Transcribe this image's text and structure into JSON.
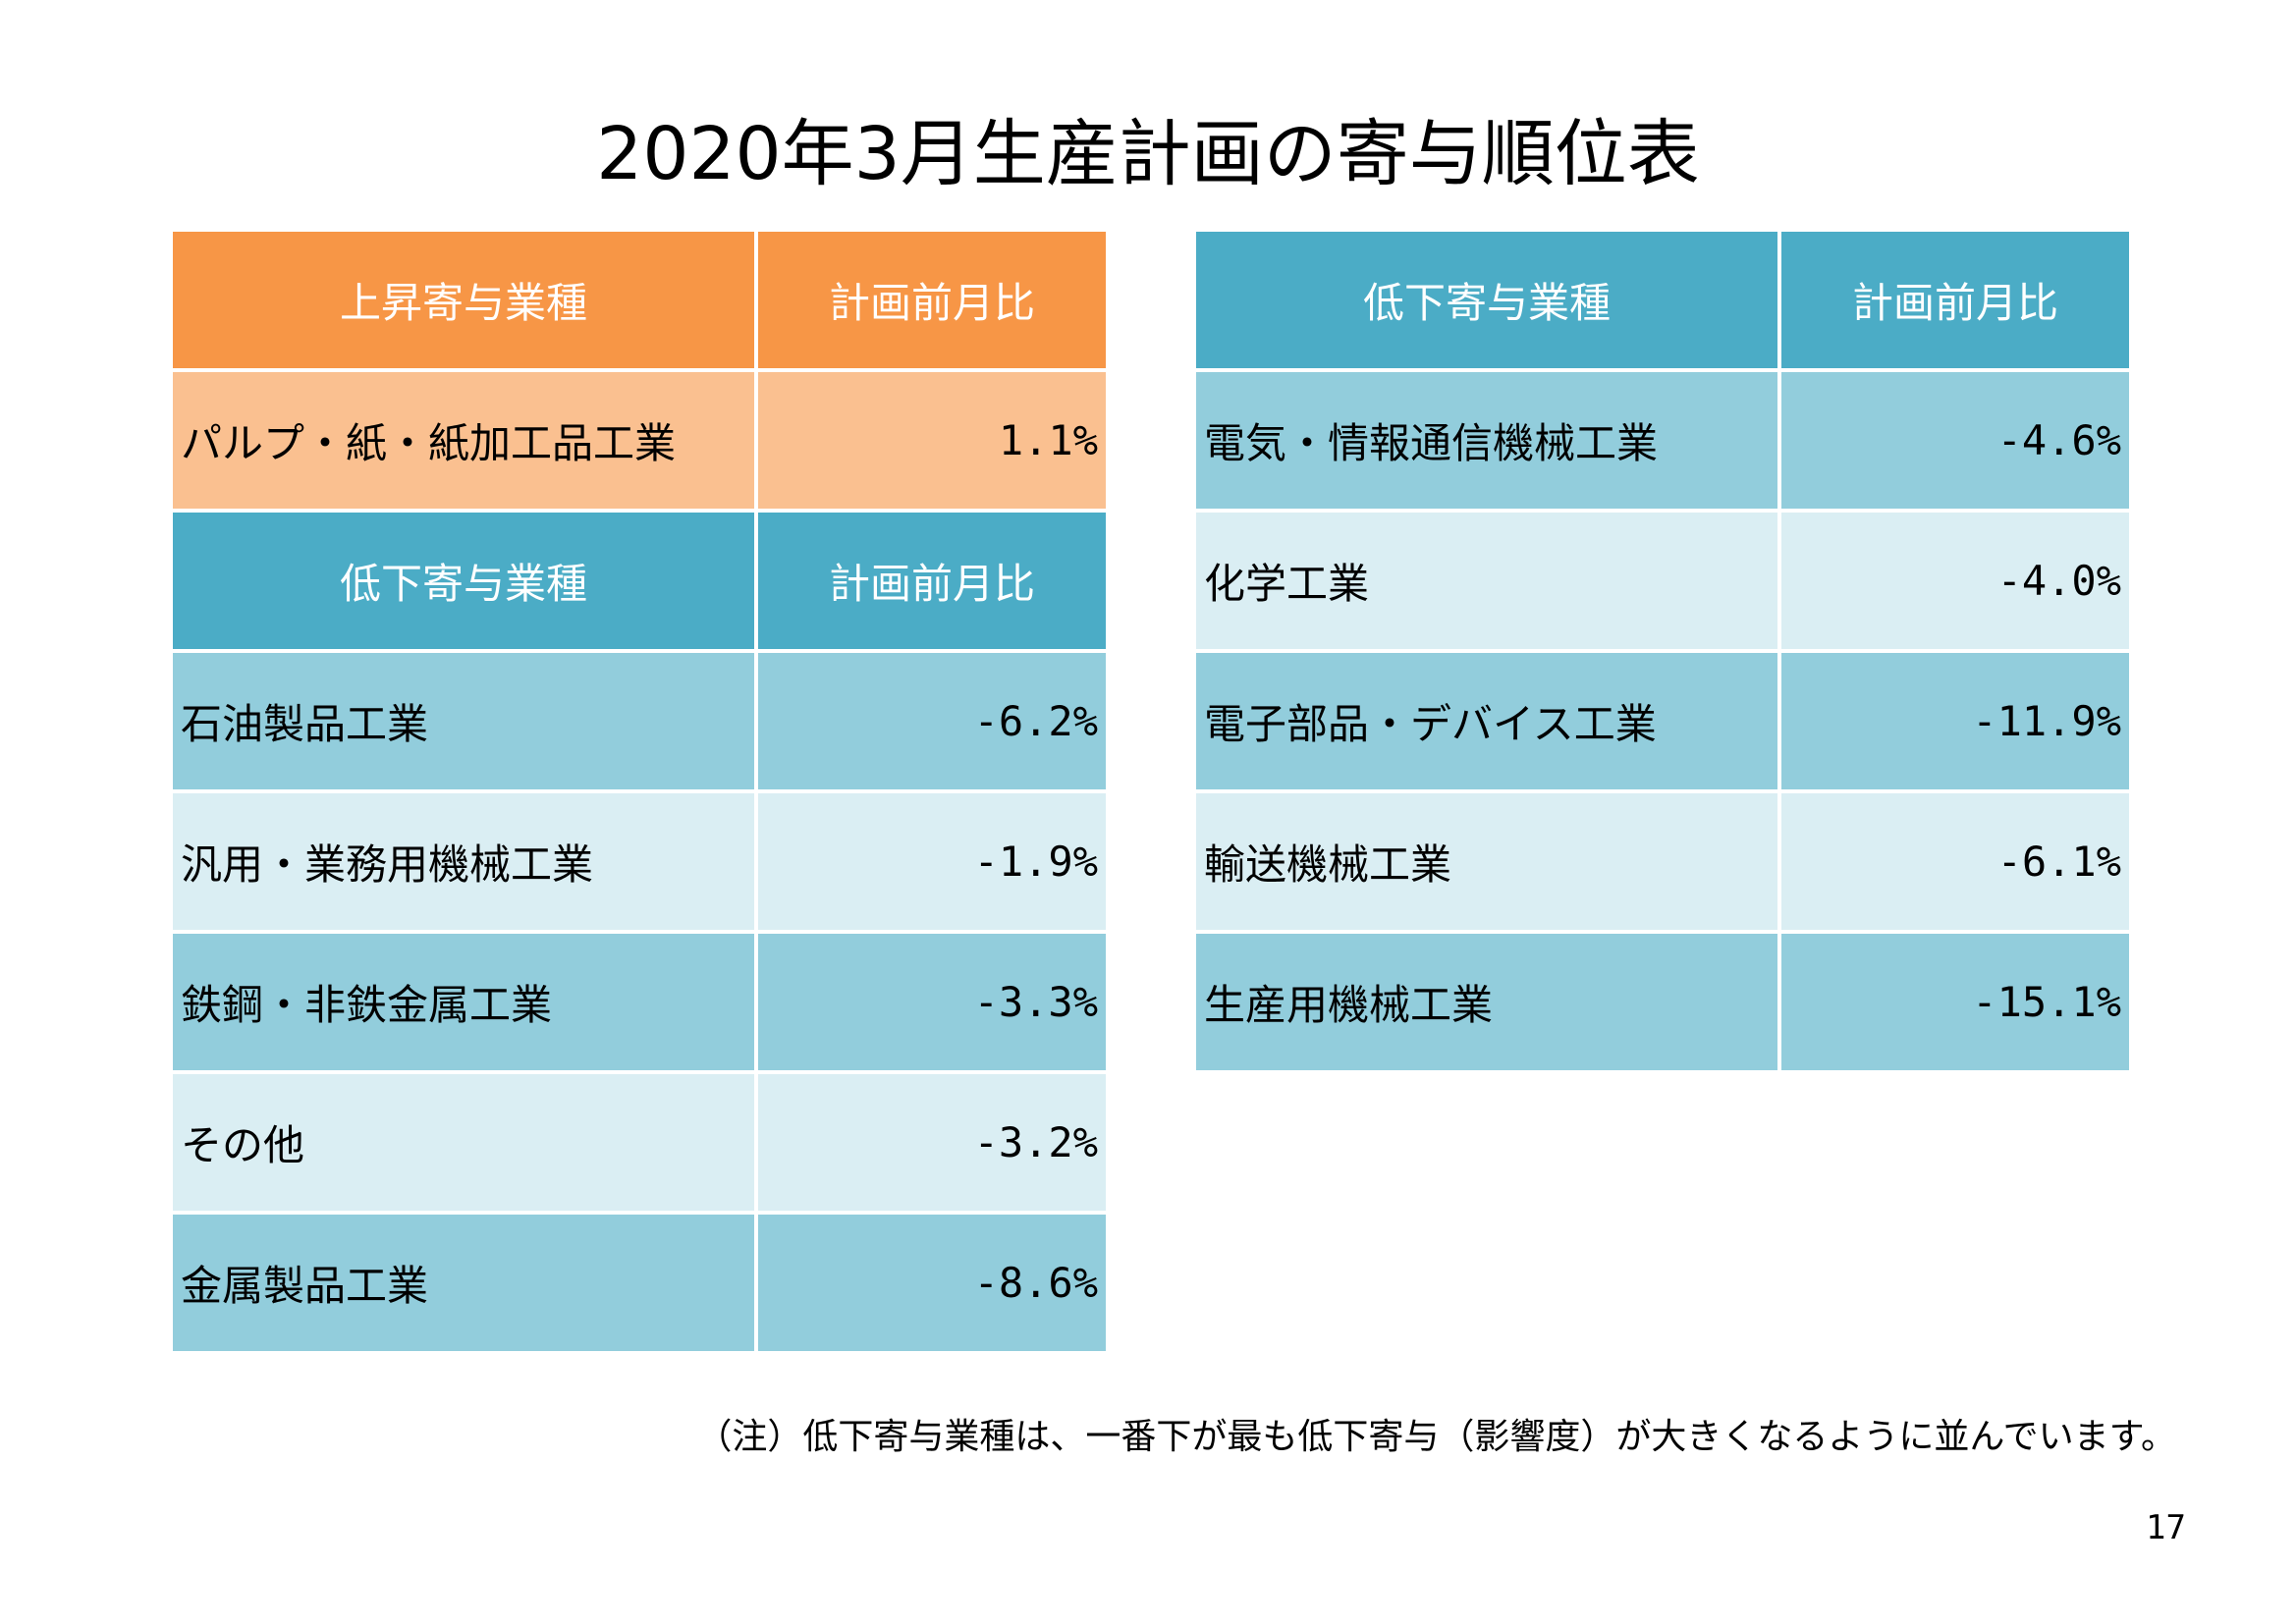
{
  "title": "2020年3月生産計画の寄与順位表",
  "left_table": {
    "rise_header": {
      "category": "上昇寄与業種",
      "value": "計画前月比"
    },
    "rise_rows": [
      {
        "category": "パルプ・紙・紙加工品工業",
        "value": "1.1%"
      }
    ],
    "fall_header": {
      "category": "低下寄与業種",
      "value": "計画前月比"
    },
    "fall_rows": [
      {
        "category": "石油製品工業",
        "value": "-6.2%"
      },
      {
        "category": "汎用・業務用機械工業",
        "value": "-1.9%"
      },
      {
        "category": "鉄鋼・非鉄金属工業",
        "value": "-3.3%"
      },
      {
        "category": "その他",
        "value": "-3.2%"
      },
      {
        "category": "金属製品工業",
        "value": "-8.6%"
      }
    ]
  },
  "right_table": {
    "header": {
      "category": "低下寄与業種",
      "value": "計画前月比"
    },
    "rows": [
      {
        "category": "電気・情報通信機械工業",
        "value": "-4.6%"
      },
      {
        "category": "化学工業",
        "value": "-4.0%"
      },
      {
        "category": "電子部品・デバイス工業",
        "value": "-11.9%"
      },
      {
        "category": "輸送機械工業",
        "value": "-6.1%"
      },
      {
        "category": "生産用機械工業",
        "value": "-15.1%"
      }
    ]
  },
  "note": "（注）低下寄与業種は、一番下が最も低下寄与（影響度）が大きくなるように並んでいます。",
  "page_number": "17",
  "colors": {
    "rise_header": "#f79646",
    "rise_row": "#fac090",
    "fall_header": "#4bacc6",
    "fall_row_dark": "#92cddc",
    "fall_row_light": "#daeef3"
  }
}
